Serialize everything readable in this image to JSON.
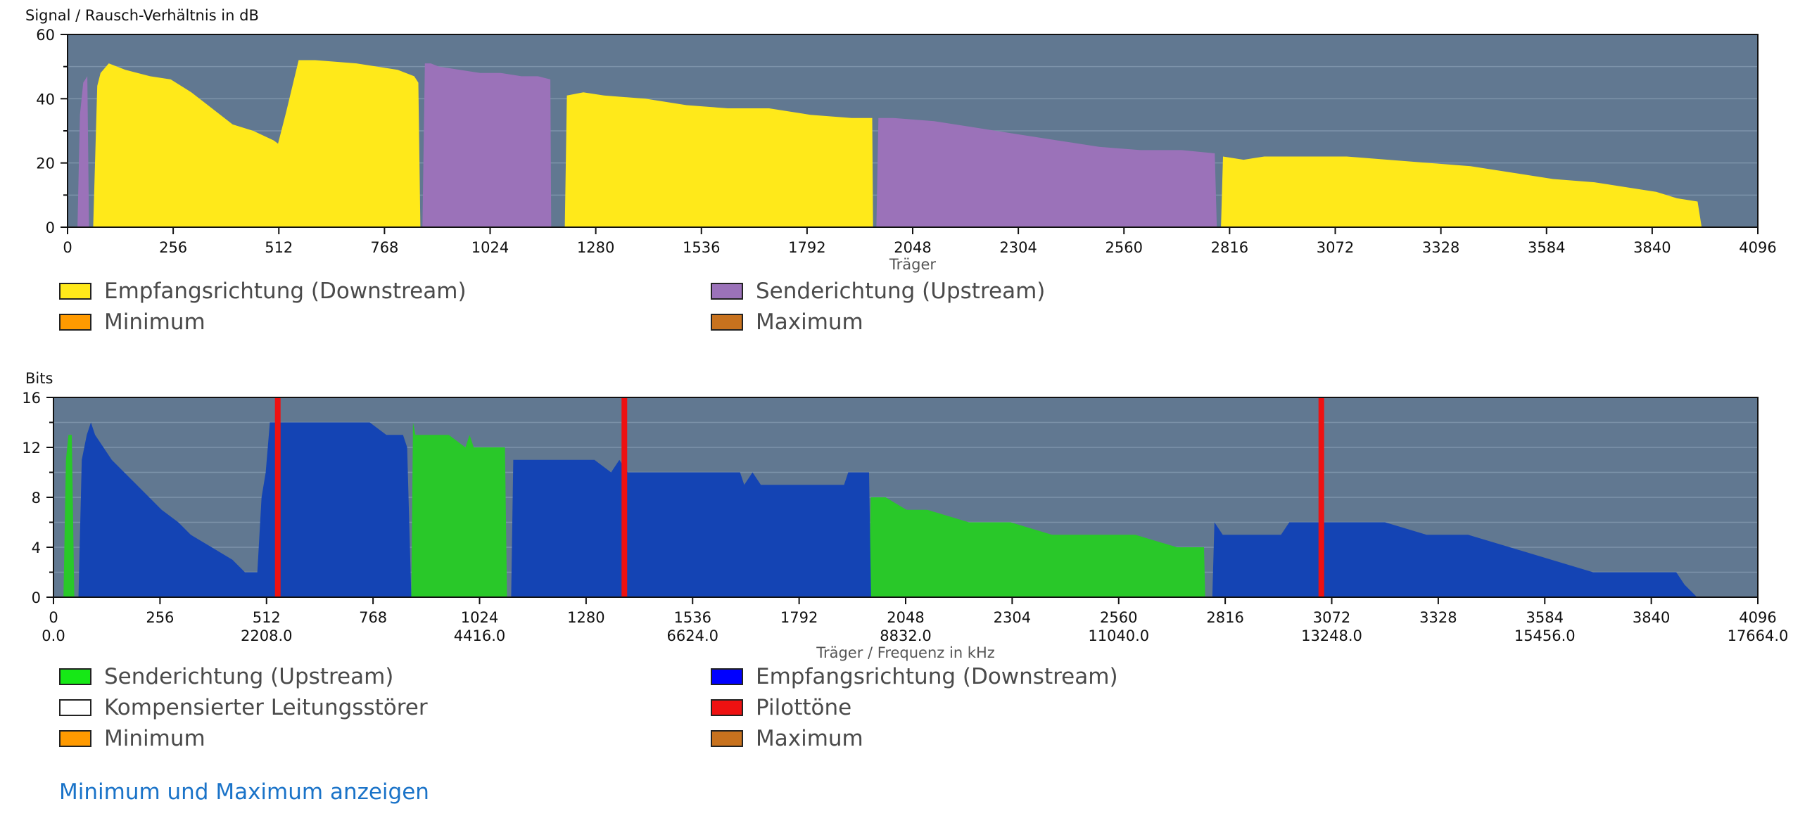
{
  "chart_data": [
    {
      "type": "area",
      "ylabel": "Signal / Rausch-Verhältnis in dB",
      "xlabel": "Träger",
      "xlim": [
        0,
        4096
      ],
      "ylim": [
        0,
        60
      ],
      "xticks": [
        0,
        256,
        512,
        768,
        1024,
        1280,
        1536,
        1792,
        2048,
        2304,
        2560,
        2816,
        3072,
        3328,
        3584,
        3840,
        4096
      ],
      "yticks": [
        0,
        20,
        40,
        60
      ],
      "grid": true,
      "series": [
        {
          "name": "Senderichtung (Upstream)",
          "color": "#9b72b9",
          "points": [
            [
              24,
              0
            ],
            [
              30,
              35
            ],
            [
              38,
              45
            ],
            [
              48,
              47
            ],
            [
              52,
              0
            ],
            [
              860,
              0
            ],
            [
              866,
              51
            ],
            [
              880,
              51
            ],
            [
              900,
              50
            ],
            [
              950,
              49
            ],
            [
              1000,
              48
            ],
            [
              1050,
              48
            ],
            [
              1100,
              47
            ],
            [
              1140,
              47
            ],
            [
              1170,
              46
            ],
            [
              1172,
              0
            ],
            [
              1960,
              0
            ],
            [
              1965,
              34
            ],
            [
              2000,
              34
            ],
            [
              2100,
              33
            ],
            [
              2200,
              31
            ],
            [
              2300,
              29
            ],
            [
              2400,
              27
            ],
            [
              2500,
              25
            ],
            [
              2600,
              24
            ],
            [
              2700,
              24
            ],
            [
              2780,
              23
            ],
            [
              2785,
              0
            ]
          ]
        },
        {
          "name": "Empfangsrichtung (Downstream)",
          "color": "#ffe91a",
          "points": [
            [
              62,
              0
            ],
            [
              72,
              44
            ],
            [
              80,
              48
            ],
            [
              100,
              51
            ],
            [
              140,
              49
            ],
            [
              200,
              47
            ],
            [
              250,
              46
            ],
            [
              300,
              42
            ],
            [
              350,
              37
            ],
            [
              400,
              32
            ],
            [
              450,
              30
            ],
            [
              500,
              27
            ],
            [
              510,
              26
            ],
            [
              530,
              36
            ],
            [
              545,
              44
            ],
            [
              560,
              52
            ],
            [
              600,
              52
            ],
            [
              700,
              51
            ],
            [
              800,
              49
            ],
            [
              840,
              47
            ],
            [
              850,
              45
            ],
            [
              855,
              0
            ],
            [
              1205,
              0
            ],
            [
              1210,
              41
            ],
            [
              1250,
              42
            ],
            [
              1300,
              41
            ],
            [
              1400,
              40
            ],
            [
              1500,
              38
            ],
            [
              1600,
              37
            ],
            [
              1700,
              37
            ],
            [
              1800,
              35
            ],
            [
              1900,
              34
            ],
            [
              1950,
              34
            ],
            [
              1952,
              0
            ],
            [
              2795,
              0
            ],
            [
              2800,
              22
            ],
            [
              2850,
              21
            ],
            [
              2900,
              22
            ],
            [
              3000,
              22
            ],
            [
              3100,
              22
            ],
            [
              3200,
              21
            ],
            [
              3300,
              20
            ],
            [
              3400,
              19
            ],
            [
              3500,
              17
            ],
            [
              3600,
              15
            ],
            [
              3700,
              14
            ],
            [
              3800,
              12
            ],
            [
              3850,
              11
            ],
            [
              3900,
              9
            ],
            [
              3950,
              8
            ],
            [
              3960,
              0
            ]
          ]
        },
        {
          "name": "Minimum",
          "color": "#ff9a00",
          "points": []
        },
        {
          "name": "Maximum",
          "color": "#c8721e",
          "points": []
        }
      ]
    },
    {
      "type": "area",
      "ylabel": "Bits",
      "xlabel": "Träger / Frequenz in kHz",
      "xlim": [
        0,
        4096
      ],
      "ylim": [
        0,
        16
      ],
      "xticks": [
        0,
        256,
        512,
        768,
        1024,
        1280,
        1536,
        1792,
        2048,
        2304,
        2560,
        2816,
        3072,
        3328,
        3584,
        3840,
        4096
      ],
      "xticks_khz": [
        "0.0",
        "2208.0",
        "4416.0",
        "6624.0",
        "8832.0",
        "11040.0",
        "13248.0",
        "15456.0",
        "17664.0"
      ],
      "yticks": [
        0,
        4,
        8,
        12,
        16
      ],
      "grid": true,
      "series": [
        {
          "name": "Senderichtung (Upstream)",
          "color": "#29c829",
          "points": [
            [
              24,
              0
            ],
            [
              30,
              11
            ],
            [
              36,
              13
            ],
            [
              44,
              13
            ],
            [
              50,
              0
            ],
            [
              860,
              0
            ],
            [
              864,
              14
            ],
            [
              870,
              13
            ],
            [
              900,
              13
            ],
            [
              950,
              13
            ],
            [
              990,
              12
            ],
            [
              1000,
              13
            ],
            [
              1010,
              12
            ],
            [
              1050,
              12
            ],
            [
              1085,
              12
            ],
            [
              1090,
              0
            ],
            [
              1960,
              0
            ],
            [
              1964,
              8
            ],
            [
              2000,
              8
            ],
            [
              2050,
              7
            ],
            [
              2100,
              7
            ],
            [
              2200,
              6
            ],
            [
              2300,
              6
            ],
            [
              2400,
              5
            ],
            [
              2500,
              5
            ],
            [
              2600,
              5
            ],
            [
              2700,
              4
            ],
            [
              2765,
              4
            ],
            [
              2768,
              0
            ]
          ]
        },
        {
          "name": "Empfangsrichtung (Downstream)",
          "color": "#1444b4",
          "points": [
            [
              60,
              0
            ],
            [
              68,
              11
            ],
            [
              80,
              13
            ],
            [
              90,
              14
            ],
            [
              100,
              13
            ],
            [
              120,
              12
            ],
            [
              140,
              11
            ],
            [
              170,
              10
            ],
            [
              200,
              9
            ],
            [
              230,
              8
            ],
            [
              260,
              7
            ],
            [
              300,
              6
            ],
            [
              330,
              5
            ],
            [
              380,
              4
            ],
            [
              430,
              3
            ],
            [
              460,
              2
            ],
            [
              490,
              2
            ],
            [
              500,
              8
            ],
            [
              510,
              10
            ],
            [
              520,
              14
            ],
            [
              600,
              14
            ],
            [
              760,
              14
            ],
            [
              800,
              13
            ],
            [
              840,
              13
            ],
            [
              850,
              12
            ],
            [
              860,
              0
            ],
            [
              1100,
              0
            ],
            [
              1105,
              11
            ],
            [
              1200,
              11
            ],
            [
              1300,
              11
            ],
            [
              1340,
              10
            ],
            [
              1360,
              11
            ],
            [
              1380,
              10
            ],
            [
              1500,
              10
            ],
            [
              1650,
              10
            ],
            [
              1660,
              9
            ],
            [
              1680,
              10
            ],
            [
              1700,
              9
            ],
            [
              1800,
              9
            ],
            [
              1900,
              9
            ],
            [
              1910,
              10
            ],
            [
              1960,
              10
            ],
            [
              1965,
              0
            ],
            [
              2785,
              0
            ],
            [
              2790,
              6
            ],
            [
              2810,
              5
            ],
            [
              2950,
              5
            ],
            [
              2970,
              6
            ],
            [
              3100,
              6
            ],
            [
              3200,
              6
            ],
            [
              3300,
              5
            ],
            [
              3400,
              5
            ],
            [
              3500,
              4
            ],
            [
              3600,
              3
            ],
            [
              3700,
              2
            ],
            [
              3800,
              2
            ],
            [
              3900,
              2
            ],
            [
              3920,
              1
            ],
            [
              3950,
              0
            ]
          ]
        },
        {
          "name": "Kompensierter Leitungsstörer",
          "color": "#ffffff",
          "points": []
        },
        {
          "name": "Pilottöne",
          "color": "#ee1111",
          "x": [
            539,
            1372,
            3047
          ]
        },
        {
          "name": "Minimum",
          "color": "#ff9a00",
          "points": []
        },
        {
          "name": "Maximum",
          "color": "#c8721e",
          "points": []
        }
      ]
    }
  ],
  "plot_bg": "#617891",
  "legend1": [
    {
      "label": "Empfangsrichtung (Downstream)",
      "color": "#ffe91a"
    },
    {
      "label": "Senderichtung (Upstream)",
      "color": "#9b72b9"
    },
    {
      "label": "Minimum",
      "color": "#ff9a00"
    },
    {
      "label": "Maximum",
      "color": "#c8721e"
    }
  ],
  "legend2": [
    {
      "label": "Senderichtung (Upstream)",
      "color": "#16e816"
    },
    {
      "label": "Empfangsrichtung (Downstream)",
      "color": "#0000ff"
    },
    {
      "label": "Kompensierter Leitungsstörer",
      "color": "#ffffff"
    },
    {
      "label": "Pilottöne",
      "color": "#ee1111"
    },
    {
      "label": "Minimum",
      "color": "#ff9a00"
    },
    {
      "label": "Maximum",
      "color": "#c8721e"
    }
  ],
  "toggle_link": "Minimum und Maximum anzeigen"
}
